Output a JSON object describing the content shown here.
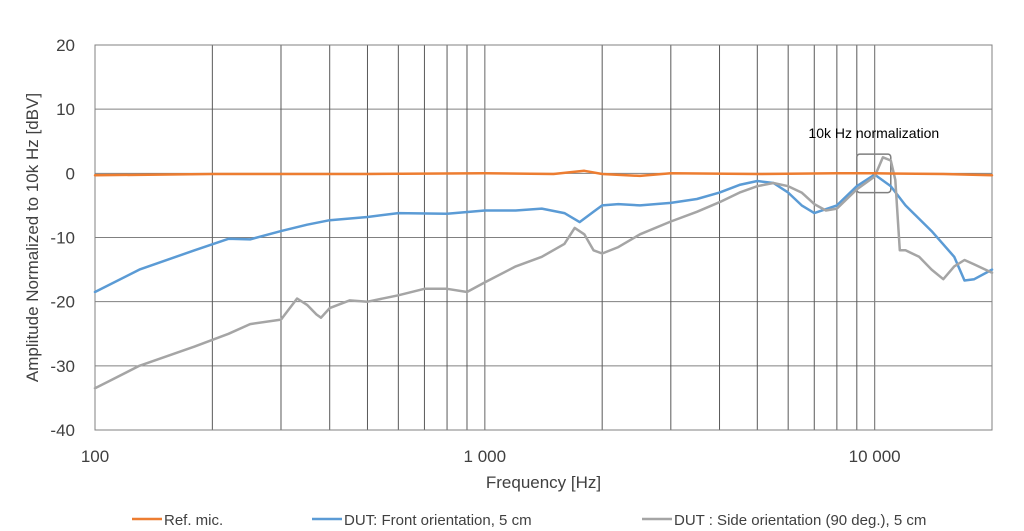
{
  "chart_data": {
    "type": "line",
    "xscale": "log",
    "xlim": [
      100,
      20000
    ],
    "ylim": [
      -40,
      20
    ],
    "xlabel": "Frequency [Hz]",
    "ylabel": "Amplitude Normalized to 10k Hz  [dBV]",
    "x_ticks": [
      100,
      1000,
      10000
    ],
    "x_tick_labels": [
      "100",
      "1 000",
      "10 000"
    ],
    "y_ticks": [
      -40,
      -30,
      -20,
      -10,
      0,
      10,
      20
    ],
    "y_tick_labels": [
      "-40",
      "-30",
      "-20",
      "-10",
      "0",
      "10",
      "20"
    ],
    "grid": "major and minor vertical lines (log decades), horizontal major lines",
    "legend_position": "bottom",
    "annotation": {
      "text": "10k Hz normalization",
      "x_range": [
        9000,
        11000
      ],
      "y_range": [
        -3,
        3
      ]
    },
    "series": [
      {
        "name": "Ref. mic.",
        "color": "#ED7D31",
        "x": [
          100,
          200,
          500,
          1000,
          1500,
          1800,
          2000,
          2500,
          3000,
          5000,
          8000,
          10000,
          15000,
          20000
        ],
        "y": [
          -0.3,
          -0.1,
          -0.1,
          0.0,
          -0.1,
          0.4,
          -0.1,
          -0.4,
          0.0,
          -0.1,
          0.0,
          0.0,
          -0.1,
          -0.3
        ]
      },
      {
        "name": "DUT: Front orientation, 5 cm",
        "color": "#5B9BD5",
        "x": [
          100,
          130,
          180,
          220,
          250,
          300,
          350,
          400,
          500,
          600,
          800,
          1000,
          1200,
          1400,
          1600,
          1750,
          1900,
          2000,
          2200,
          2500,
          3000,
          3500,
          4000,
          4500,
          5000,
          5500,
          6000,
          6500,
          7000,
          8000,
          9000,
          10000,
          11000,
          12000,
          14000,
          16000,
          17000,
          18000,
          20000
        ],
        "y": [
          -18.5,
          -15,
          -12,
          -10.2,
          -10.3,
          -9,
          -8,
          -7.3,
          -6.8,
          -6.2,
          -6.3,
          -5.8,
          -5.8,
          -5.5,
          -6.2,
          -7.6,
          -6,
          -5,
          -4.8,
          -5,
          -4.6,
          -4,
          -3,
          -1.8,
          -1.2,
          -1.5,
          -3,
          -5,
          -6.2,
          -5,
          -2,
          -0.2,
          -2,
          -5,
          -9,
          -13,
          -16.7,
          -16.5,
          -15
        ]
      },
      {
        "name": "DUT : Side orientation (90 deg.), 5 cm",
        "color": "#A5A5A5",
        "x": [
          100,
          130,
          180,
          220,
          250,
          300,
          330,
          350,
          370,
          380,
          400,
          450,
          500,
          600,
          700,
          800,
          900,
          1000,
          1200,
          1400,
          1600,
          1700,
          1800,
          1900,
          2000,
          2200,
          2500,
          3000,
          3500,
          4000,
          4500,
          5000,
          5500,
          6000,
          6500,
          7000,
          7500,
          8000,
          9000,
          10000,
          10500,
          11000,
          11300,
          11600,
          12000,
          13000,
          14000,
          15000,
          16000,
          17000,
          18000,
          20000
        ],
        "y": [
          -33.5,
          -30,
          -27,
          -25,
          -23.5,
          -22.8,
          -19.5,
          -20.5,
          -22,
          -22.5,
          -21,
          -19.8,
          -20,
          -19,
          -18,
          -18,
          -18.5,
          -17,
          -14.5,
          -13,
          -11,
          -8.5,
          -9.5,
          -12,
          -12.5,
          -11.5,
          -9.5,
          -7.5,
          -6,
          -4.5,
          -3,
          -2,
          -1.5,
          -2,
          -3,
          -4.8,
          -5.8,
          -5.5,
          -2.5,
          -0.5,
          2.5,
          2,
          -1,
          -12,
          -12,
          -13,
          -15,
          -16.5,
          -14.5,
          -13.5,
          -14.2,
          -15.5
        ]
      }
    ]
  }
}
